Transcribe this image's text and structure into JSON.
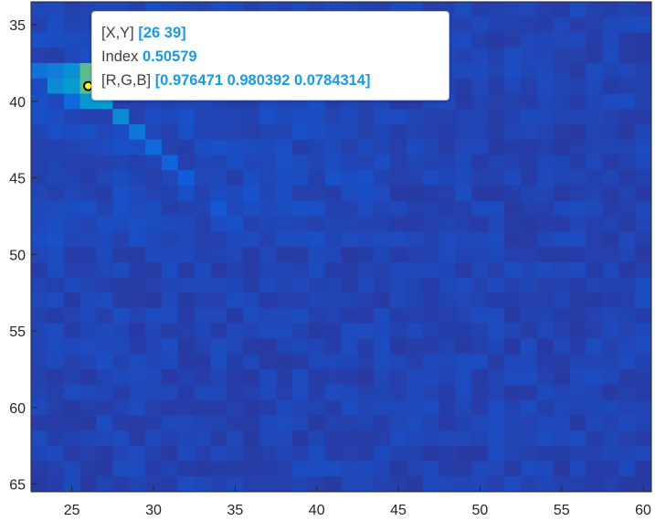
{
  "chart_data": {
    "type": "heatmap",
    "title": "",
    "xlabel": "",
    "ylabel": "",
    "xlim": [
      22.5,
      60.5
    ],
    "ylim": [
      65.5,
      33.5
    ],
    "y_direction": "reversed",
    "x_ticks": [
      "25",
      "30",
      "35",
      "40",
      "45",
      "50",
      "55",
      "60"
    ],
    "y_ticks": [
      "35",
      "40",
      "45",
      "50",
      "55",
      "60",
      "65"
    ],
    "colormap": "parula",
    "grid": false,
    "background_value": 0.05,
    "bright_cells": [
      {
        "x": 23,
        "y": 38,
        "value": 0.16
      },
      {
        "x": 24,
        "y": 38,
        "value": 0.2
      },
      {
        "x": 24,
        "y": 39,
        "value": 0.24
      },
      {
        "x": 25,
        "y": 38,
        "value": 0.26
      },
      {
        "x": 25,
        "y": 39,
        "value": 0.3
      },
      {
        "x": 25,
        "y": 40,
        "value": 0.14
      },
      {
        "x": 26,
        "y": 38,
        "value": 0.50579
      },
      {
        "x": 26,
        "y": 39,
        "value": 0.50579
      },
      {
        "x": 26,
        "y": 40,
        "value": 0.28
      },
      {
        "x": 27,
        "y": 39,
        "value": 0.26
      },
      {
        "x": 27,
        "y": 40,
        "value": 0.3
      },
      {
        "x": 28,
        "y": 41,
        "value": 0.24
      },
      {
        "x": 29,
        "y": 42,
        "value": 0.18
      },
      {
        "x": 30,
        "y": 43,
        "value": 0.14
      },
      {
        "x": 31,
        "y": 44,
        "value": 0.12
      },
      {
        "x": 32,
        "y": 45,
        "value": 0.1
      },
      {
        "x": 34,
        "y": 47,
        "value": 0.09
      },
      {
        "x": 36,
        "y": 46,
        "value": 0.08
      }
    ],
    "datatip": {
      "marker": {
        "x": 26,
        "y": 39
      },
      "rows": [
        {
          "label": "[X,Y]",
          "value": "[26 39]"
        },
        {
          "label": "Index",
          "value": "0.50579"
        },
        {
          "label": "[R,G,B]",
          "value": "[0.976471 0.980392 0.0784314]"
        }
      ]
    }
  },
  "colors": {
    "axes_line": "#262626",
    "datatip_value": "#1a9be0",
    "datatip_label": "#404040",
    "marker_fill": "#ffff00"
  }
}
